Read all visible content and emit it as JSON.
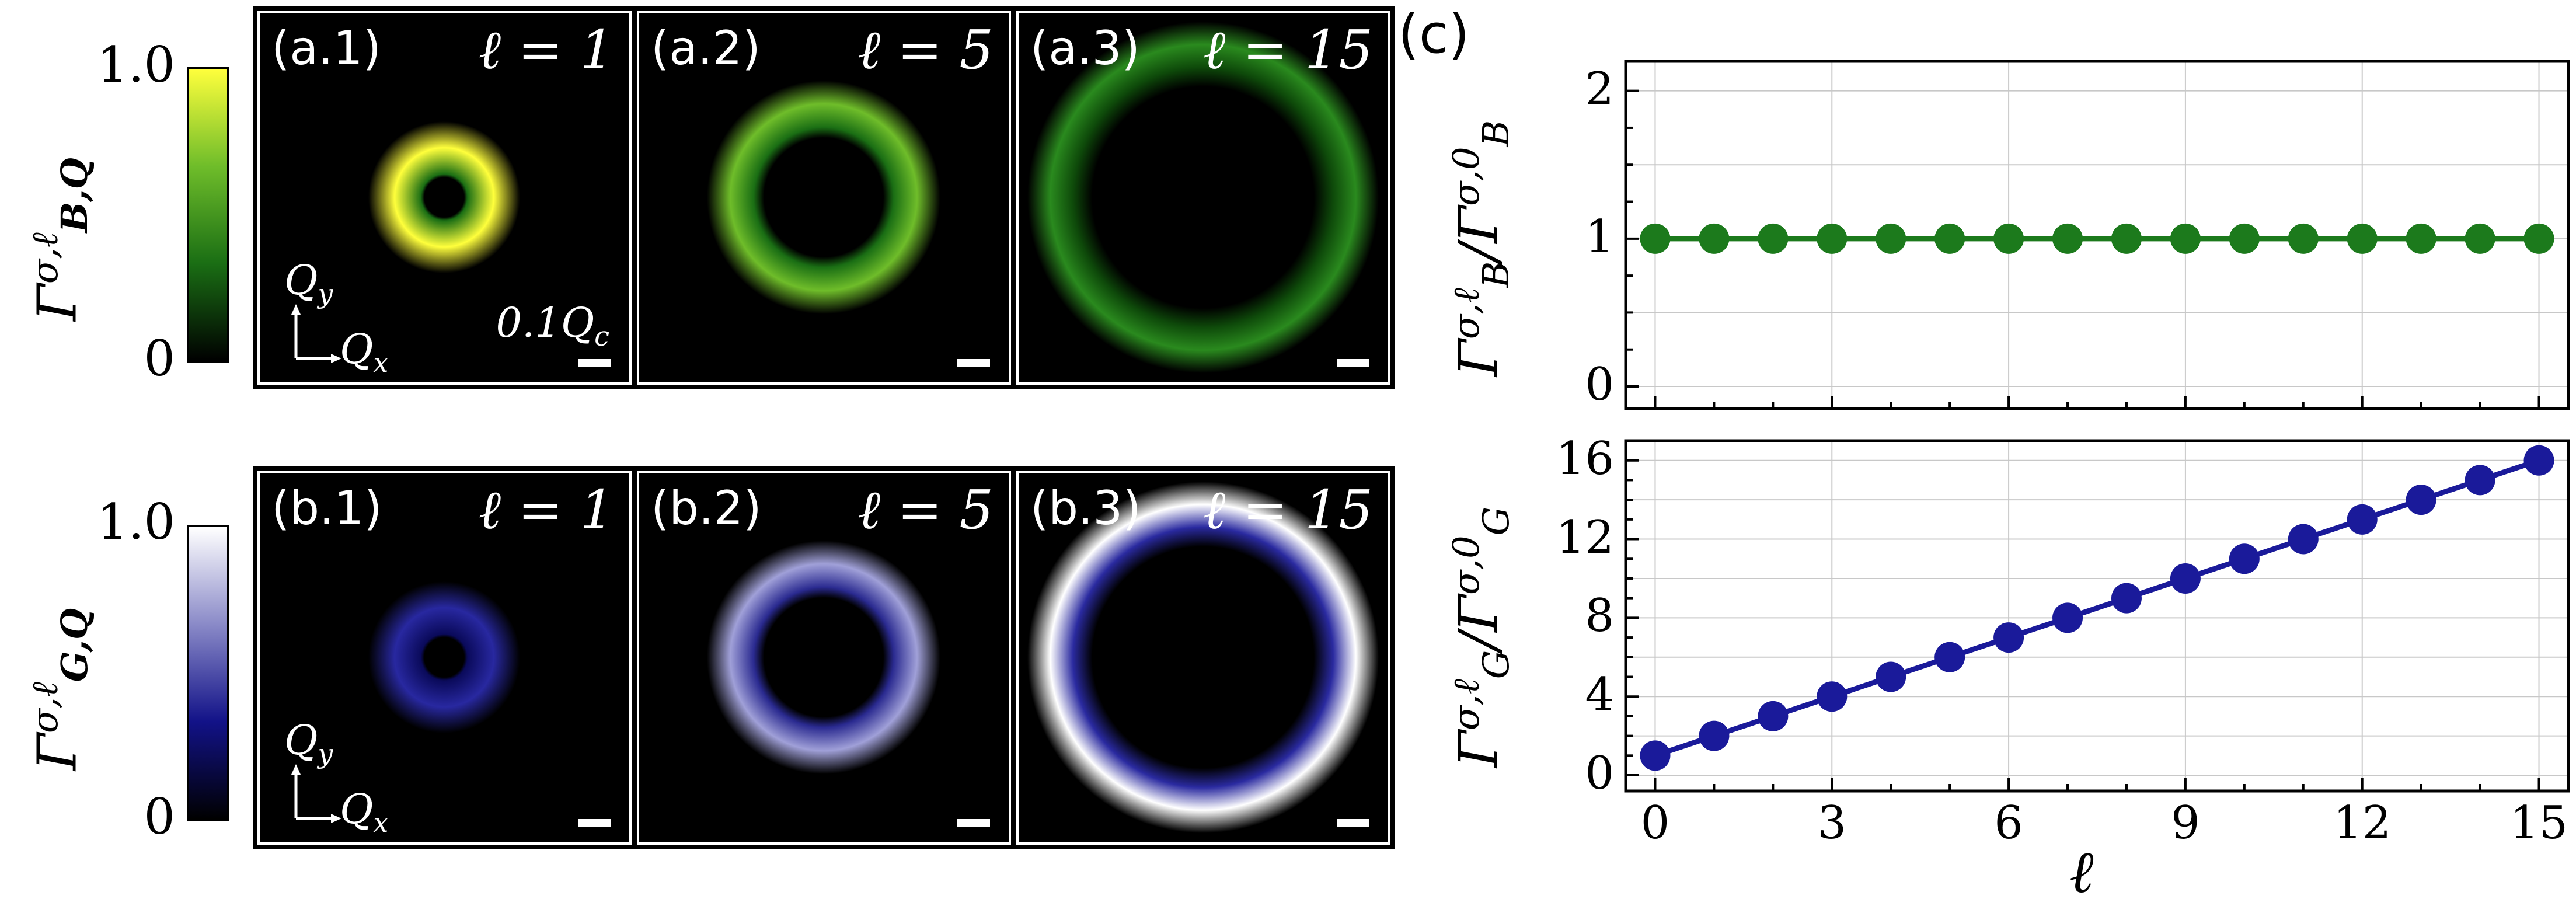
{
  "left": {
    "colorbar_top": {
      "title": "Γ^{σ,ℓ}_{B,Q}",
      "title_main": "Γ",
      "title_sup": "σ,ℓ",
      "title_sub": "B,Q",
      "max": "1.0",
      "min": "0",
      "colors": [
        "#000000",
        "#1a6e14",
        "#6fbd2a",
        "#ffff3c"
      ]
    },
    "colorbar_bottom": {
      "title": "Γ^{σ,ℓ}_{G,Q}",
      "title_main": "Γ",
      "title_sup": "σ,ℓ",
      "title_sub": "G,Q",
      "max": "1.0",
      "min": "0",
      "colors": [
        "#000000",
        "#121288",
        "#8a8ac8",
        "#ffffff"
      ]
    },
    "panels_top": [
      {
        "label": "(a.1)",
        "ell": "ℓ = 1",
        "ring_color": "#ffff3c",
        "inner_color": "#1a6e14"
      },
      {
        "label": "(a.2)",
        "ell": "ℓ = 5",
        "ring_color": "#6fbd2a",
        "inner_color": "#1a6e14"
      },
      {
        "label": "(a.3)",
        "ell": "ℓ = 15",
        "ring_color": "#2a8a1e",
        "inner_color": "#0e4a0a"
      }
    ],
    "panels_bottom": [
      {
        "label": "(b.1)",
        "ell": "ℓ = 1",
        "ring_color": "#2828a0",
        "inner_color": "#0a0a5a"
      },
      {
        "label": "(b.2)",
        "ell": "ℓ = 5",
        "ring_color": "#a0a0d8",
        "inner_color": "#2a2a90"
      },
      {
        "label": "(b.3)",
        "ell": "ℓ = 15",
        "ring_color": "#ffffff",
        "inner_color": "#2a2aa0"
      }
    ],
    "axis_qy": "Q",
    "axis_qy_sub": "y",
    "axis_qx": "Q",
    "axis_qx_sub": "x",
    "scale_label": "0.1Q",
    "scale_label_sub": "c"
  },
  "right": {
    "panel_label": "(c)"
  },
  "chart_data": [
    {
      "type": "line",
      "title": "",
      "xlabel": "",
      "ylabel": "Γ^{σ,ℓ}_B / Γ^{σ,0}_B",
      "ylabel_parts": {
        "num": "Γ",
        "num_sup": "σ,ℓ",
        "num_sub": "B",
        "den": "Γ",
        "den_sup": "σ,0",
        "den_sub": "B"
      },
      "x": [
        0,
        1,
        2,
        3,
        4,
        5,
        6,
        7,
        8,
        9,
        10,
        11,
        12,
        13,
        14,
        15
      ],
      "series": [
        {
          "values": [
            1,
            1,
            1,
            1,
            1,
            1,
            1,
            1,
            1,
            1,
            1,
            1,
            1,
            1,
            1,
            1
          ],
          "color": "#1c7a1c"
        }
      ],
      "xlim": [
        -0.5,
        15.5
      ],
      "ylim": [
        -0.15,
        2.2
      ],
      "yticks": [
        0,
        1,
        2
      ],
      "ytick_labels": [
        "0",
        "1",
        "2"
      ],
      "grid": true
    },
    {
      "type": "line",
      "title": "",
      "xlabel": "ℓ",
      "ylabel": "Γ^{σ,ℓ}_G / Γ^{σ,0}_G",
      "ylabel_parts": {
        "num": "Γ",
        "num_sup": "σ,ℓ",
        "num_sub": "G",
        "den": "Γ",
        "den_sup": "σ,0",
        "den_sub": "G"
      },
      "x": [
        0,
        1,
        2,
        3,
        4,
        5,
        6,
        7,
        8,
        9,
        10,
        11,
        12,
        13,
        14,
        15
      ],
      "series": [
        {
          "values": [
            1,
            2,
            3,
            4,
            5,
            6,
            7,
            8,
            9,
            10,
            11,
            12,
            13,
            14,
            15,
            16
          ],
          "color": "#1a1a9a"
        }
      ],
      "xlim": [
        -0.5,
        15.5
      ],
      "ylim": [
        -0.8,
        17
      ],
      "xticks": [
        0,
        3,
        6,
        9,
        12,
        15
      ],
      "xtick_labels": [
        "0",
        "3",
        "6",
        "9",
        "12",
        "15"
      ],
      "yticks": [
        0,
        4,
        8,
        12,
        16
      ],
      "ytick_labels": [
        "0",
        "4",
        "8",
        "12",
        "16"
      ],
      "grid": true
    }
  ]
}
